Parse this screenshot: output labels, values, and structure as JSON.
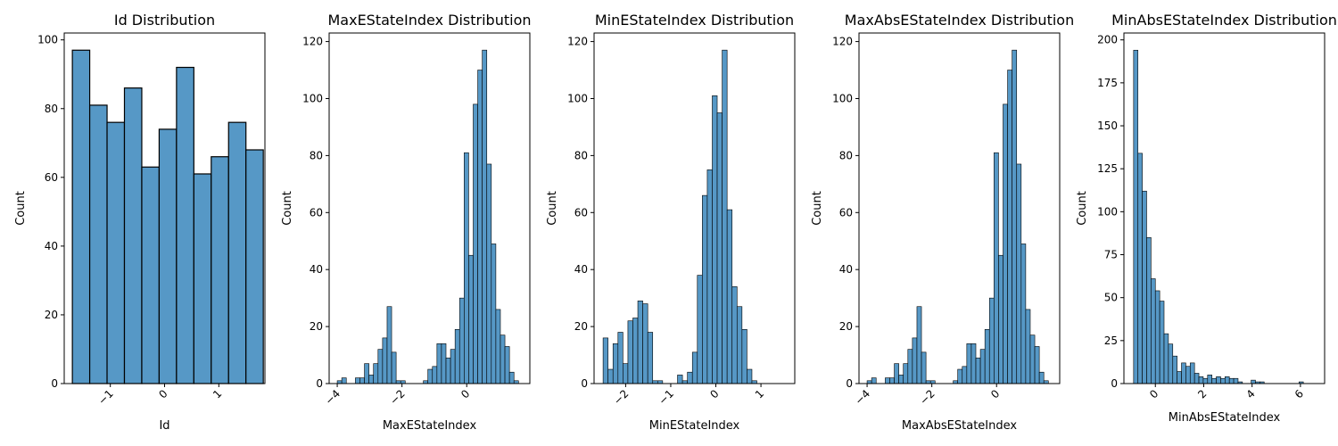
{
  "chart_data": [
    {
      "type": "bar",
      "title": "Id Distribution",
      "xlabel": "Id",
      "ylabel": "Count",
      "xlim": [
        -1.85,
        1.85
      ],
      "ylim": [
        0,
        102
      ],
      "xticks": [
        -1,
        0,
        1
      ],
      "xtick_labels": [
        "−1",
        "0",
        "1"
      ],
      "yticks": [
        0,
        20,
        40,
        60,
        80,
        100
      ],
      "ytick_labels": [
        "0",
        "20",
        "40",
        "60",
        "80",
        "100"
      ],
      "bins": [
        [
          -1.7,
          -1.38,
          97
        ],
        [
          -1.38,
          -1.06,
          81
        ],
        [
          -1.06,
          -0.74,
          76
        ],
        [
          -0.74,
          -0.42,
          86
        ],
        [
          -0.42,
          -0.1,
          63
        ],
        [
          -0.1,
          0.22,
          74
        ],
        [
          0.22,
          0.54,
          92
        ],
        [
          0.54,
          0.86,
          61
        ],
        [
          0.86,
          1.18,
          66
        ],
        [
          1.18,
          1.5,
          76
        ],
        [
          1.5,
          1.82,
          68
        ]
      ]
    },
    {
      "type": "bar",
      "title": "MaxEStateIndex Distribution",
      "xlabel": "MaxEStateIndex",
      "ylabel": "Count",
      "xlim": [
        -4.25,
        1.95
      ],
      "ylim": [
        0,
        123
      ],
      "xticks": [
        -4,
        -2,
        0
      ],
      "xtick_labels": [
        "−4",
        "−2",
        "0"
      ],
      "yticks": [
        0,
        20,
        40,
        60,
        80,
        100,
        120
      ],
      "ytick_labels": [
        "0",
        "20",
        "40",
        "60",
        "80",
        "100",
        "120"
      ],
      "bins": [
        [
          -4.0,
          -3.86,
          1
        ],
        [
          -3.86,
          -3.72,
          2
        ],
        [
          -3.72,
          -3.58,
          0
        ],
        [
          -3.58,
          -3.44,
          0
        ],
        [
          -3.44,
          -3.3,
          2
        ],
        [
          -3.3,
          -3.16,
          2
        ],
        [
          -3.16,
          -3.02,
          7
        ],
        [
          -3.02,
          -2.88,
          3
        ],
        [
          -2.88,
          -2.74,
          7
        ],
        [
          -2.74,
          -2.6,
          12
        ],
        [
          -2.6,
          -2.46,
          16
        ],
        [
          -2.46,
          -2.32,
          27
        ],
        [
          -2.32,
          -2.18,
          11
        ],
        [
          -2.18,
          -2.04,
          1
        ],
        [
          -2.04,
          -1.9,
          1
        ],
        [
          -1.9,
          -1.76,
          0
        ],
        [
          -1.76,
          -1.62,
          0
        ],
        [
          -1.62,
          -1.48,
          0
        ],
        [
          -1.48,
          -1.34,
          0
        ],
        [
          -1.34,
          -1.2,
          1
        ],
        [
          -1.2,
          -1.06,
          5
        ],
        [
          -1.06,
          -0.92,
          6
        ],
        [
          -0.92,
          -0.78,
          14
        ],
        [
          -0.78,
          -0.64,
          14
        ],
        [
          -0.64,
          -0.5,
          9
        ],
        [
          -0.5,
          -0.36,
          12
        ],
        [
          -0.36,
          -0.22,
          19
        ],
        [
          -0.22,
          -0.08,
          30
        ],
        [
          -0.08,
          0.06,
          81
        ],
        [
          0.06,
          0.2,
          45
        ],
        [
          0.2,
          0.34,
          98
        ],
        [
          0.34,
          0.48,
          110
        ],
        [
          0.48,
          0.62,
          117
        ],
        [
          0.62,
          0.76,
          77
        ],
        [
          0.76,
          0.9,
          49
        ],
        [
          0.9,
          1.04,
          26
        ],
        [
          1.04,
          1.18,
          17
        ],
        [
          1.18,
          1.32,
          13
        ],
        [
          1.32,
          1.46,
          4
        ],
        [
          1.46,
          1.6,
          1
        ]
      ]
    },
    {
      "type": "bar",
      "title": "MinEStateIndex Distribution",
      "xlabel": "MinEStateIndex",
      "ylabel": "Count",
      "xlim": [
        -2.7,
        1.75
      ],
      "ylim": [
        0,
        123
      ],
      "xticks": [
        -2,
        -1,
        0,
        1
      ],
      "xtick_labels": [
        "−2",
        "−1",
        "0",
        "1"
      ],
      "yticks": [
        0,
        20,
        40,
        60,
        80,
        100,
        120
      ],
      "ytick_labels": [
        "0",
        "20",
        "40",
        "60",
        "80",
        "100",
        "120"
      ],
      "bins": [
        [
          -2.5,
          -2.39,
          16
        ],
        [
          -2.39,
          -2.28,
          5
        ],
        [
          -2.28,
          -2.17,
          14
        ],
        [
          -2.17,
          -2.06,
          18
        ],
        [
          -2.06,
          -1.95,
          7
        ],
        [
          -1.95,
          -1.84,
          22
        ],
        [
          -1.84,
          -1.73,
          23
        ],
        [
          -1.73,
          -1.62,
          29
        ],
        [
          -1.62,
          -1.51,
          28
        ],
        [
          -1.51,
          -1.4,
          18
        ],
        [
          -1.4,
          -1.29,
          1
        ],
        [
          -1.29,
          -1.18,
          1
        ],
        [
          -1.18,
          -1.07,
          0
        ],
        [
          -1.07,
          -0.96,
          0
        ],
        [
          -0.96,
          -0.85,
          0
        ],
        [
          -0.85,
          -0.74,
          3
        ],
        [
          -0.74,
          -0.63,
          1
        ],
        [
          -0.63,
          -0.52,
          4
        ],
        [
          -0.52,
          -0.41,
          11
        ],
        [
          -0.41,
          -0.3,
          38
        ],
        [
          -0.3,
          -0.19,
          66
        ],
        [
          -0.19,
          -0.08,
          75
        ],
        [
          -0.08,
          0.03,
          101
        ],
        [
          0.03,
          0.14,
          95
        ],
        [
          0.14,
          0.25,
          117
        ],
        [
          0.25,
          0.36,
          61
        ],
        [
          0.36,
          0.47,
          34
        ],
        [
          0.47,
          0.58,
          27
        ],
        [
          0.58,
          0.69,
          19
        ],
        [
          0.69,
          0.8,
          5
        ],
        [
          0.8,
          0.91,
          1
        ]
      ]
    },
    {
      "type": "bar",
      "title": "MaxAbsEStateIndex Distribution",
      "xlabel": "MaxAbsEStateIndex",
      "ylabel": "Count",
      "xlim": [
        -4.25,
        1.95
      ],
      "ylim": [
        0,
        123
      ],
      "xticks": [
        -4,
        -2,
        0
      ],
      "xtick_labels": [
        "−4",
        "−2",
        "0"
      ],
      "yticks": [
        0,
        20,
        40,
        60,
        80,
        100,
        120
      ],
      "ytick_labels": [
        "0",
        "20",
        "40",
        "60",
        "80",
        "100",
        "120"
      ],
      "bins": [
        [
          -4.0,
          -3.86,
          1
        ],
        [
          -3.86,
          -3.72,
          2
        ],
        [
          -3.72,
          -3.58,
          0
        ],
        [
          -3.58,
          -3.44,
          0
        ],
        [
          -3.44,
          -3.3,
          2
        ],
        [
          -3.3,
          -3.16,
          2
        ],
        [
          -3.16,
          -3.02,
          7
        ],
        [
          -3.02,
          -2.88,
          3
        ],
        [
          -2.88,
          -2.74,
          7
        ],
        [
          -2.74,
          -2.6,
          12
        ],
        [
          -2.6,
          -2.46,
          16
        ],
        [
          -2.46,
          -2.32,
          27
        ],
        [
          -2.32,
          -2.18,
          11
        ],
        [
          -2.18,
          -2.04,
          1
        ],
        [
          -2.04,
          -1.9,
          1
        ],
        [
          -1.9,
          -1.76,
          0
        ],
        [
          -1.76,
          -1.62,
          0
        ],
        [
          -1.62,
          -1.48,
          0
        ],
        [
          -1.48,
          -1.34,
          0
        ],
        [
          -1.34,
          -1.2,
          1
        ],
        [
          -1.2,
          -1.06,
          5
        ],
        [
          -1.06,
          -0.92,
          6
        ],
        [
          -0.92,
          -0.78,
          14
        ],
        [
          -0.78,
          -0.64,
          14
        ],
        [
          -0.64,
          -0.5,
          9
        ],
        [
          -0.5,
          -0.36,
          12
        ],
        [
          -0.36,
          -0.22,
          19
        ],
        [
          -0.22,
          -0.08,
          30
        ],
        [
          -0.08,
          0.06,
          81
        ],
        [
          0.06,
          0.2,
          45
        ],
        [
          0.2,
          0.34,
          98
        ],
        [
          0.34,
          0.48,
          110
        ],
        [
          0.48,
          0.62,
          117
        ],
        [
          0.62,
          0.76,
          77
        ],
        [
          0.76,
          0.9,
          49
        ],
        [
          0.9,
          1.04,
          26
        ],
        [
          1.04,
          1.18,
          17
        ],
        [
          1.18,
          1.32,
          13
        ],
        [
          1.32,
          1.46,
          4
        ],
        [
          1.46,
          1.6,
          1
        ]
      ]
    },
    {
      "type": "bar",
      "title": "MinAbsEStateIndex Distribution",
      "xlabel": "MinAbsEStateIndex",
      "ylabel": "Count",
      "xlim": [
        -1.3,
        7.0
      ],
      "ylim": [
        0,
        204
      ],
      "xticks": [
        0,
        2,
        4,
        6
      ],
      "xtick_labels": [
        "0",
        "2",
        "4",
        "6"
      ],
      "yticks": [
        0,
        25,
        50,
        75,
        100,
        125,
        150,
        175,
        200
      ],
      "ytick_labels": [
        "0",
        "25",
        "50",
        "75",
        "100",
        "125",
        "150",
        "175",
        "200"
      ],
      "bins": [
        [
          -0.9,
          -0.72,
          194
        ],
        [
          -0.72,
          -0.54,
          134
        ],
        [
          -0.54,
          -0.36,
          112
        ],
        [
          -0.36,
          -0.18,
          85
        ],
        [
          -0.18,
          0.0,
          61
        ],
        [
          0.0,
          0.18,
          54
        ],
        [
          0.18,
          0.36,
          48
        ],
        [
          0.36,
          0.54,
          29
        ],
        [
          0.54,
          0.72,
          23
        ],
        [
          0.72,
          0.9,
          16
        ],
        [
          0.9,
          1.08,
          7
        ],
        [
          1.08,
          1.26,
          12
        ],
        [
          1.26,
          1.44,
          10
        ],
        [
          1.44,
          1.62,
          12
        ],
        [
          1.62,
          1.8,
          6
        ],
        [
          1.8,
          1.98,
          4
        ],
        [
          1.98,
          2.16,
          3
        ],
        [
          2.16,
          2.34,
          5
        ],
        [
          2.34,
          2.52,
          3
        ],
        [
          2.52,
          2.7,
          4
        ],
        [
          2.7,
          2.88,
          3
        ],
        [
          2.88,
          3.06,
          4
        ],
        [
          3.06,
          3.24,
          3
        ],
        [
          3.24,
          3.42,
          3
        ],
        [
          3.42,
          3.6,
          1
        ],
        [
          3.6,
          3.78,
          0
        ],
        [
          3.78,
          3.96,
          0
        ],
        [
          3.96,
          4.14,
          2
        ],
        [
          4.14,
          4.32,
          1
        ],
        [
          4.32,
          4.5,
          1
        ],
        [
          4.5,
          4.68,
          0
        ],
        [
          4.68,
          4.86,
          0
        ],
        [
          4.86,
          5.04,
          0
        ],
        [
          5.04,
          5.22,
          0
        ],
        [
          5.22,
          5.4,
          0
        ],
        [
          5.4,
          5.58,
          0
        ],
        [
          5.58,
          5.76,
          0
        ],
        [
          5.76,
          5.94,
          0
        ],
        [
          5.94,
          6.12,
          1
        ]
      ]
    }
  ]
}
